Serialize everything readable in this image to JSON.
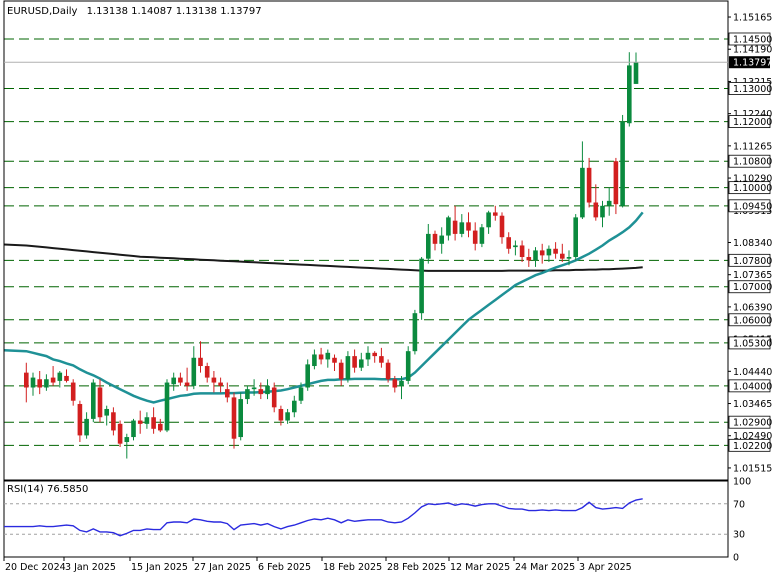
{
  "header": {
    "symbol": "EURUSD,Daily",
    "ohlc": "1.13138 1.14087 1.13138 1.13797"
  },
  "rsi_header": {
    "label": "RSI(14) 76.5850"
  },
  "colors": {
    "bull": "#0b8a3e",
    "bear": "#d21f1f",
    "ma_fast": "#1f9196",
    "ma_slow": "#1a1a1a",
    "level": "#006400",
    "rsi_line": "#2a2adf"
  },
  "chart_data": [
    {
      "type": "candlestick",
      "symbol": "EURUSD",
      "timeframe": "Daily",
      "current_price": 1.13797,
      "ylim": [
        1.0115,
        1.1565
      ],
      "y_ticks": [
        "1.15165",
        "1.14190",
        "1.13215",
        "1.12240",
        "1.11265",
        "1.10290",
        "1.09315",
        "1.08340",
        "1.07365",
        "1.06390",
        "1.05415",
        "1.04440",
        "1.03465",
        "1.02490",
        "1.01515"
      ],
      "x_labels": [
        "20 Dec 2024",
        "3 Jan 2025",
        "15 Jan 2025",
        "27 Jan 2025",
        "6 Feb 2025",
        "18 Feb 2025",
        "28 Feb 2025",
        "12 Mar 2025",
        "24 Mar 2025",
        "3 Apr 2025"
      ],
      "horizontal_levels": [
        "1.14500",
        "1.13000",
        "1.12000",
        "1.10800",
        "1.10000",
        "1.09450",
        "1.07800",
        "1.07000",
        "1.06000",
        "1.05300",
        "1.04000",
        "1.02900",
        "1.02200"
      ],
      "candles": [
        {
          "o": 1.044,
          "h": 1.047,
          "l": 1.035,
          "c": 1.0395
        },
        {
          "o": 1.0395,
          "h": 1.044,
          "l": 1.037,
          "c": 1.0425
        },
        {
          "o": 1.042,
          "h": 1.0445,
          "l": 1.0375,
          "c": 1.0395
        },
        {
          "o": 1.0395,
          "h": 1.0435,
          "l": 1.0385,
          "c": 1.042
        },
        {
          "o": 1.0425,
          "h": 1.046,
          "l": 1.04,
          "c": 1.041
        },
        {
          "o": 1.0415,
          "h": 1.0445,
          "l": 1.0395,
          "c": 1.044
        },
        {
          "o": 1.043,
          "h": 1.045,
          "l": 1.041,
          "c": 1.0415
        },
        {
          "o": 1.041,
          "h": 1.042,
          "l": 1.034,
          "c": 1.0355
        },
        {
          "o": 1.0345,
          "h": 1.0355,
          "l": 1.023,
          "c": 1.025
        },
        {
          "o": 1.025,
          "h": 1.032,
          "l": 1.024,
          "c": 1.03
        },
        {
          "o": 1.03,
          "h": 1.042,
          "l": 1.029,
          "c": 1.041
        },
        {
          "o": 1.0395,
          "h": 1.042,
          "l": 1.029,
          "c": 1.0305
        },
        {
          "o": 1.031,
          "h": 1.034,
          "l": 1.028,
          "c": 1.033
        },
        {
          "o": 1.032,
          "h": 1.0335,
          "l": 1.025,
          "c": 1.0265
        },
        {
          "o": 1.0285,
          "h": 1.0295,
          "l": 1.0215,
          "c": 1.0225
        },
        {
          "o": 1.023,
          "h": 1.0255,
          "l": 1.018,
          "c": 1.0245
        },
        {
          "o": 1.0245,
          "h": 1.03,
          "l": 1.0235,
          "c": 1.0295
        },
        {
          "o": 1.0295,
          "h": 1.0325,
          "l": 1.0255,
          "c": 1.0285
        },
        {
          "o": 1.0285,
          "h": 1.032,
          "l": 1.027,
          "c": 1.0305
        },
        {
          "o": 1.0305,
          "h": 1.0335,
          "l": 1.0255,
          "c": 1.027
        },
        {
          "o": 1.0285,
          "h": 1.03,
          "l": 1.026,
          "c": 1.0265
        },
        {
          "o": 1.0265,
          "h": 1.042,
          "l": 1.026,
          "c": 1.041
        },
        {
          "o": 1.0405,
          "h": 1.044,
          "l": 1.0385,
          "c": 1.0425
        },
        {
          "o": 1.0425,
          "h": 1.044,
          "l": 1.04,
          "c": 1.041
        },
        {
          "o": 1.041,
          "h": 1.0455,
          "l": 1.0385,
          "c": 1.04
        },
        {
          "o": 1.04,
          "h": 1.052,
          "l": 1.039,
          "c": 1.0485
        },
        {
          "o": 1.0485,
          "h": 1.0535,
          "l": 1.044,
          "c": 1.046
        },
        {
          "o": 1.046,
          "h": 1.047,
          "l": 1.041,
          "c": 1.0425
        },
        {
          "o": 1.0425,
          "h": 1.0445,
          "l": 1.038,
          "c": 1.041
        },
        {
          "o": 1.041,
          "h": 1.0425,
          "l": 1.038,
          "c": 1.04
        },
        {
          "o": 1.039,
          "h": 1.041,
          "l": 1.035,
          "c": 1.0365
        },
        {
          "o": 1.0365,
          "h": 1.038,
          "l": 1.021,
          "c": 1.024
        },
        {
          "o": 1.0245,
          "h": 1.038,
          "l": 1.0235,
          "c": 1.036
        },
        {
          "o": 1.036,
          "h": 1.04,
          "l": 1.0345,
          "c": 1.039
        },
        {
          "o": 1.039,
          "h": 1.042,
          "l": 1.037,
          "c": 1.0395
        },
        {
          "o": 1.039,
          "h": 1.041,
          "l": 1.036,
          "c": 1.0375
        },
        {
          "o": 1.0375,
          "h": 1.042,
          "l": 1.036,
          "c": 1.04
        },
        {
          "o": 1.0395,
          "h": 1.041,
          "l": 1.032,
          "c": 1.0335
        },
        {
          "o": 1.033,
          "h": 1.034,
          "l": 1.028,
          "c": 1.0295
        },
        {
          "o": 1.0295,
          "h": 1.033,
          "l": 1.0285,
          "c": 1.032
        },
        {
          "o": 1.032,
          "h": 1.037,
          "l": 1.0305,
          "c": 1.0355
        },
        {
          "o": 1.0355,
          "h": 1.041,
          "l": 1.0345,
          "c": 1.0395
        },
        {
          "o": 1.0395,
          "h": 1.048,
          "l": 1.0385,
          "c": 1.0465
        },
        {
          "o": 1.046,
          "h": 1.051,
          "l": 1.045,
          "c": 1.0495
        },
        {
          "o": 1.0495,
          "h": 1.0515,
          "l": 1.0465,
          "c": 1.048
        },
        {
          "o": 1.048,
          "h": 1.051,
          "l": 1.0455,
          "c": 1.05
        },
        {
          "o": 1.0485,
          "h": 1.0495,
          "l": 1.0445,
          "c": 1.047
        },
        {
          "o": 1.047,
          "h": 1.048,
          "l": 1.04,
          "c": 1.042
        },
        {
          "o": 1.042,
          "h": 1.0505,
          "l": 1.041,
          "c": 1.049
        },
        {
          "o": 1.049,
          "h": 1.051,
          "l": 1.044,
          "c": 1.0455
        },
        {
          "o": 1.0455,
          "h": 1.05,
          "l": 1.0445,
          "c": 1.048
        },
        {
          "o": 1.048,
          "h": 1.052,
          "l": 1.046,
          "c": 1.05
        },
        {
          "o": 1.05,
          "h": 1.0505,
          "l": 1.047,
          "c": 1.049
        },
        {
          "o": 1.049,
          "h": 1.0515,
          "l": 1.0455,
          "c": 1.047
        },
        {
          "o": 1.047,
          "h": 1.048,
          "l": 1.041,
          "c": 1.042
        },
        {
          "o": 1.042,
          "h": 1.043,
          "l": 1.038,
          "c": 1.0395
        },
        {
          "o": 1.04,
          "h": 1.043,
          "l": 1.036,
          "c": 1.0415
        },
        {
          "o": 1.0415,
          "h": 1.052,
          "l": 1.0405,
          "c": 1.0505
        },
        {
          "o": 1.0505,
          "h": 1.063,
          "l": 1.0495,
          "c": 1.062
        },
        {
          "o": 1.062,
          "h": 1.079,
          "l": 1.06,
          "c": 1.0785
        },
        {
          "o": 1.0785,
          "h": 1.089,
          "l": 1.077,
          "c": 1.086
        },
        {
          "o": 1.086,
          "h": 1.087,
          "l": 1.081,
          "c": 1.083
        },
        {
          "o": 1.083,
          "h": 1.088,
          "l": 1.08,
          "c": 1.0855
        },
        {
          "o": 1.0855,
          "h": 1.0915,
          "l": 1.084,
          "c": 1.091
        },
        {
          "o": 1.09,
          "h": 1.0945,
          "l": 1.084,
          "c": 1.086
        },
        {
          "o": 1.086,
          "h": 1.092,
          "l": 1.085,
          "c": 1.0895
        },
        {
          "o": 1.0895,
          "h": 1.0925,
          "l": 1.085,
          "c": 1.087
        },
        {
          "o": 1.087,
          "h": 1.0895,
          "l": 1.081,
          "c": 1.083
        },
        {
          "o": 1.083,
          "h": 1.089,
          "l": 1.082,
          "c": 1.088
        },
        {
          "o": 1.088,
          "h": 1.093,
          "l": 1.086,
          "c": 1.0925
        },
        {
          "o": 1.0925,
          "h": 1.0945,
          "l": 1.09,
          "c": 1.0915
        },
        {
          "o": 1.0915,
          "h": 1.0925,
          "l": 1.083,
          "c": 1.085
        },
        {
          "o": 1.085,
          "h": 1.0865,
          "l": 1.08,
          "c": 1.0815
        },
        {
          "o": 1.082,
          "h": 1.084,
          "l": 1.0795,
          "c": 1.0825
        },
        {
          "o": 1.0825,
          "h": 1.084,
          "l": 1.0775,
          "c": 1.079
        },
        {
          "o": 1.079,
          "h": 1.0815,
          "l": 1.076,
          "c": 1.078
        },
        {
          "o": 1.078,
          "h": 1.082,
          "l": 1.076,
          "c": 1.081
        },
        {
          "o": 1.081,
          "h": 1.083,
          "l": 1.077,
          "c": 1.0795
        },
        {
          "o": 1.0795,
          "h": 1.0825,
          "l": 1.0775,
          "c": 1.0815
        },
        {
          "o": 1.0815,
          "h": 1.0835,
          "l": 1.0785,
          "c": 1.08
        },
        {
          "o": 1.08,
          "h": 1.083,
          "l": 1.0775,
          "c": 1.0785
        },
        {
          "o": 1.0785,
          "h": 1.081,
          "l": 1.0765,
          "c": 1.079
        },
        {
          "o": 1.079,
          "h": 1.092,
          "l": 1.078,
          "c": 1.091
        },
        {
          "o": 1.091,
          "h": 1.114,
          "l": 1.0905,
          "c": 1.106
        },
        {
          "o": 1.106,
          "h": 1.109,
          "l": 1.094,
          "c": 1.0955
        },
        {
          "o": 1.0955,
          "h": 1.101,
          "l": 1.09,
          "c": 1.091
        },
        {
          "o": 1.091,
          "h": 1.096,
          "l": 1.088,
          "c": 1.0945
        },
        {
          "o": 1.0945,
          "h": 1.1,
          "l": 1.0915,
          "c": 1.096
        },
        {
          "o": 1.108,
          "h": 1.109,
          "l": 1.092,
          "c": 1.095
        },
        {
          "o": 1.0945,
          "h": 1.122,
          "l": 1.094,
          "c": 1.12
        },
        {
          "o": 1.1195,
          "h": 1.141,
          "l": 1.1185,
          "c": 1.137
        },
        {
          "o": 1.1314,
          "h": 1.1409,
          "l": 1.1314,
          "c": 1.138
        }
      ],
      "ma_fast": [
        1.0505,
        1.05,
        1.0495,
        1.049,
        1.048,
        1.0475,
        1.0468,
        1.0462,
        1.045,
        1.044,
        1.0432,
        1.0422,
        1.041,
        1.04,
        1.039,
        1.038,
        1.037,
        1.0362,
        1.0355,
        1.035,
        1.0355,
        1.036,
        1.0365,
        1.037,
        1.0372,
        1.0376,
        1.0377,
        1.0377,
        1.0377,
        1.0377,
        1.0378,
        1.0378,
        1.0379,
        1.038,
        1.038,
        1.0381,
        1.0382,
        1.0384,
        1.0386,
        1.039,
        1.0395,
        1.04,
        1.0405,
        1.041,
        1.0415,
        1.0418,
        1.0418,
        1.042,
        1.042,
        1.0421,
        1.0421,
        1.0421,
        1.0421,
        1.042,
        1.042,
        1.042,
        1.042,
        1.0425,
        1.044,
        1.046,
        1.048,
        1.05,
        1.052,
        1.054,
        1.056,
        1.058,
        1.06,
        1.0615,
        1.063,
        1.0645,
        1.066,
        1.0675,
        1.069,
        1.0705,
        1.0715,
        1.0725,
        1.0735,
        1.0742,
        1.075,
        1.0758,
        1.0765,
        1.0772,
        1.078,
        1.079,
        1.08,
        1.0812,
        1.0825,
        1.084,
        1.0852,
        1.0865,
        1.088,
        1.09,
        1.0925
      ],
      "ma_slow": [
        1.0825,
        1.0823,
        1.0821,
        1.0819,
        1.0817,
        1.0815,
        1.0813,
        1.0811,
        1.0809,
        1.0807,
        1.0805,
        1.0803,
        1.0801,
        1.0799,
        1.0797,
        1.0795,
        1.0793,
        1.0791,
        1.079,
        1.0789,
        1.0788,
        1.0787,
        1.0786,
        1.0785,
        1.0784,
        1.0783,
        1.0782,
        1.0781,
        1.078,
        1.0779,
        1.0778,
        1.0777,
        1.0776,
        1.0775,
        1.0774,
        1.0773,
        1.0772,
        1.0771,
        1.077,
        1.0769,
        1.0768,
        1.0767,
        1.0766,
        1.0765,
        1.0764,
        1.0763,
        1.0762,
        1.0761,
        1.076,
        1.0759,
        1.0758,
        1.0757,
        1.0756,
        1.0755,
        1.0754,
        1.0753,
        1.0752,
        1.0751,
        1.075,
        1.0749,
        1.0748,
        1.0748,
        1.0748,
        1.0748,
        1.0748,
        1.0748,
        1.0748,
        1.0748,
        1.0748,
        1.0748,
        1.0748,
        1.0748,
        1.0749,
        1.0749,
        1.0749,
        1.0749,
        1.0749,
        1.0749,
        1.0749,
        1.075,
        1.075,
        1.075,
        1.0751,
        1.0751,
        1.0752,
        1.0752,
        1.0753,
        1.0753,
        1.0754,
        1.0755,
        1.0756,
        1.0757,
        1.0759
      ]
    },
    {
      "type": "line",
      "name": "RSI(14)",
      "ylim": [
        0,
        100
      ],
      "y_ticks": [
        "100",
        "70",
        "30",
        "0"
      ],
      "levels": [
        70,
        30
      ],
      "values": [
        40,
        40,
        41,
        40,
        40,
        41,
        42,
        41,
        35,
        33,
        37,
        33,
        33,
        32,
        28,
        31,
        35,
        35,
        37,
        36,
        36,
        45,
        46,
        46,
        45,
        50,
        49,
        47,
        46,
        46,
        44,
        36,
        42,
        43,
        44,
        42,
        44,
        40,
        37,
        40,
        42,
        45,
        48,
        50,
        49,
        51,
        49,
        45,
        49,
        47,
        48,
        49,
        49,
        49,
        46,
        45,
        46,
        51,
        58,
        66,
        70,
        69,
        70,
        71,
        68,
        70,
        69,
        67,
        69,
        70,
        70,
        67,
        64,
        63,
        63,
        61,
        61,
        62,
        61,
        62,
        61,
        61,
        61,
        65,
        72,
        65,
        63,
        64,
        65,
        64,
        71,
        75,
        76.6
      ]
    }
  ]
}
